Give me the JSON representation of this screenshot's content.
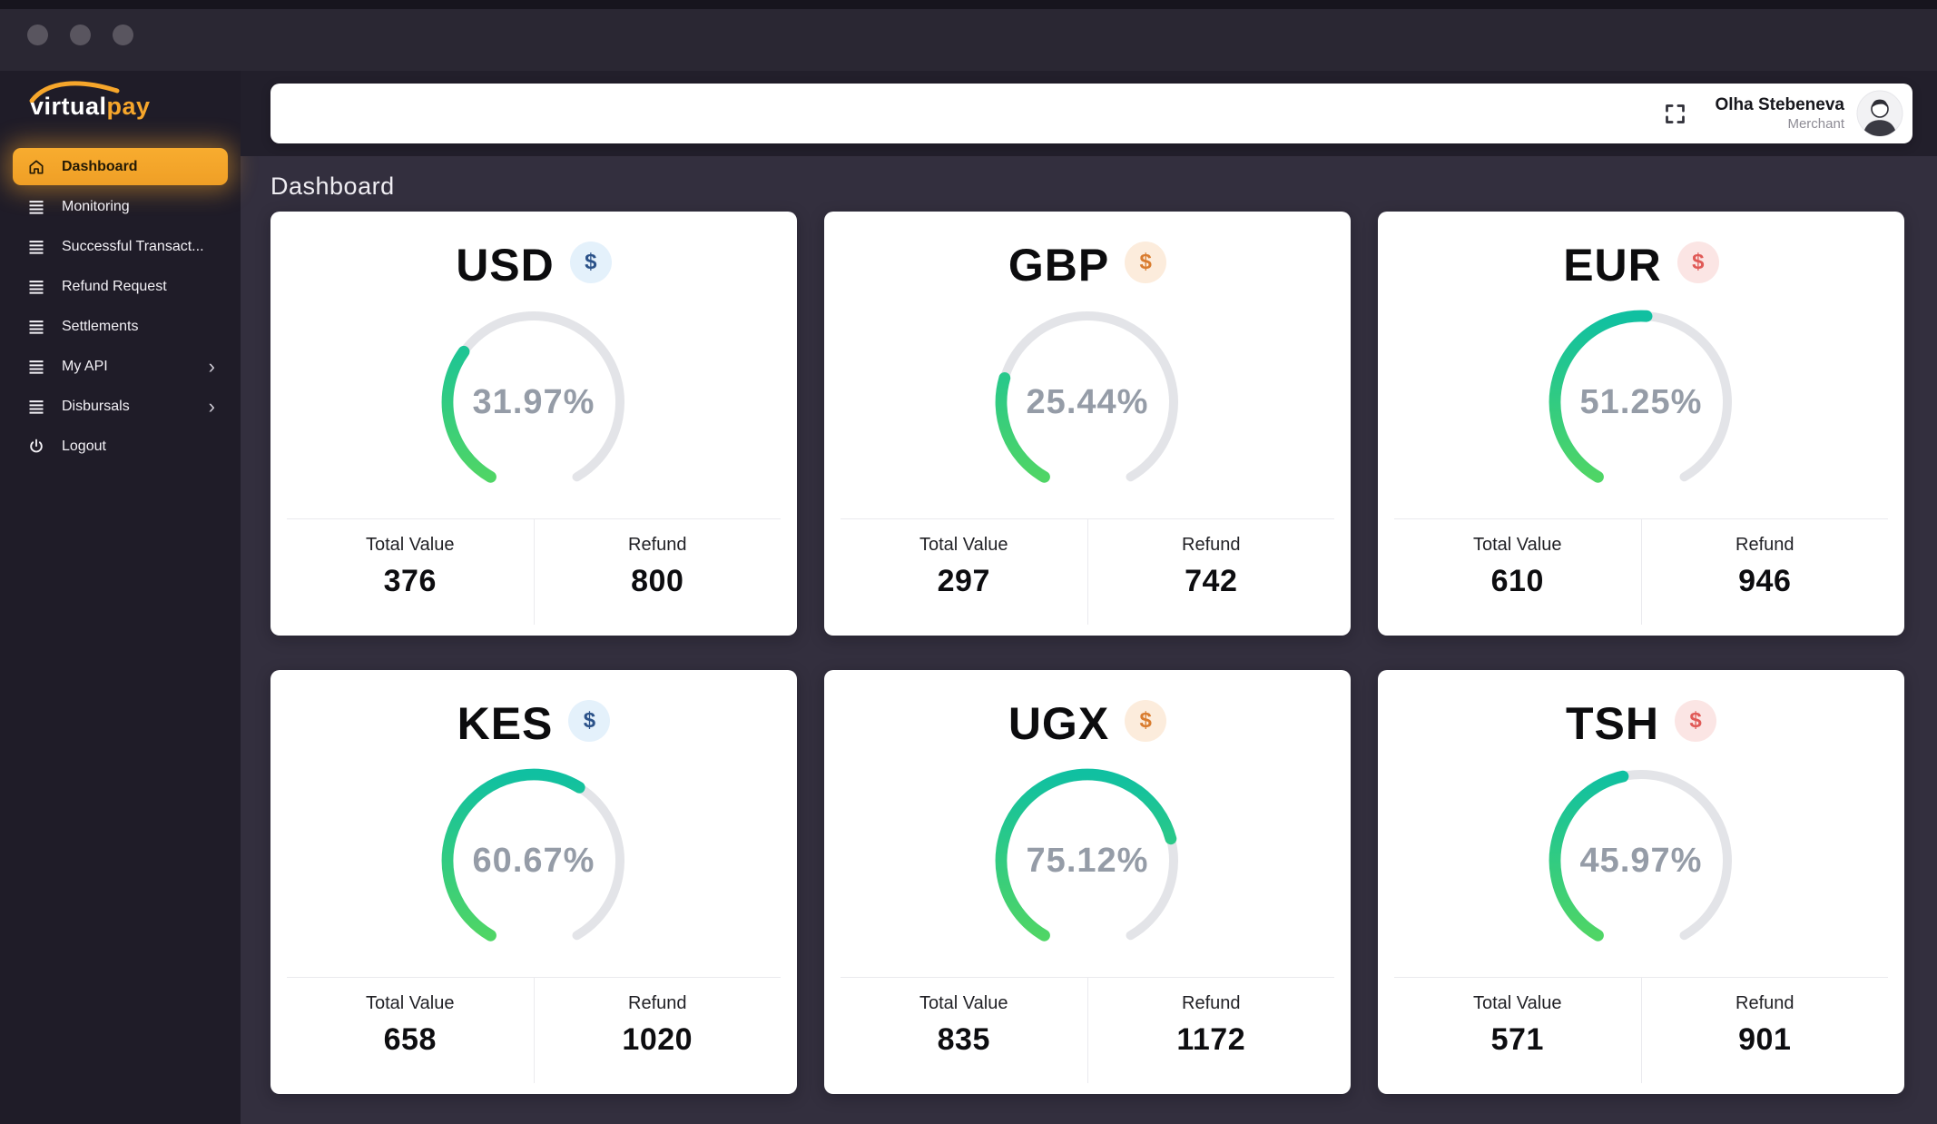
{
  "window": {
    "controls": [
      "window-dot",
      "window-dot",
      "window-dot"
    ]
  },
  "sidebar": {
    "logo": {
      "text_primary": "virtual",
      "text_accent": "pay"
    },
    "items": [
      {
        "label": "Dashboard",
        "icon": "home-icon",
        "active": true,
        "submenu": false
      },
      {
        "label": "Monitoring",
        "icon": "menu-icon",
        "active": false,
        "submenu": false
      },
      {
        "label": "Successful Transact...",
        "icon": "menu-icon",
        "active": false,
        "submenu": false
      },
      {
        "label": "Refund Request",
        "icon": "menu-icon",
        "active": false,
        "submenu": false
      },
      {
        "label": "Settlements",
        "icon": "menu-icon",
        "active": false,
        "submenu": false
      },
      {
        "label": "My API",
        "icon": "menu-icon",
        "active": false,
        "submenu": true
      },
      {
        "label": "Disbursals",
        "icon": "menu-icon",
        "active": false,
        "submenu": true
      },
      {
        "label": "Logout",
        "icon": "power-icon",
        "active": false,
        "submenu": false
      }
    ]
  },
  "topbar": {
    "user_name": "Olha Stebeneva",
    "user_role": "Merchant"
  },
  "page": {
    "heading": "Dashboard"
  },
  "card_labels": {
    "total": "Total Value",
    "refund": "Refund"
  },
  "cards": [
    {
      "code": "USD",
      "currency_symbol": "$",
      "badge": "blue",
      "percent": "31.97%",
      "percent_value": 31.97,
      "total_value": "376",
      "refund_value": "800"
    },
    {
      "code": "GBP",
      "currency_symbol": "$",
      "badge": "orange",
      "percent": "25.44%",
      "percent_value": 25.44,
      "total_value": "297",
      "refund_value": "742"
    },
    {
      "code": "EUR",
      "currency_symbol": "$",
      "badge": "pink",
      "percent": "51.25%",
      "percent_value": 51.25,
      "total_value": "610",
      "refund_value": "946"
    },
    {
      "code": "KES",
      "currency_symbol": "$",
      "badge": "blue",
      "percent": "60.67%",
      "percent_value": 60.67,
      "total_value": "658",
      "refund_value": "1020"
    },
    {
      "code": "UGX",
      "currency_symbol": "$",
      "badge": "orange",
      "percent": "75.12%",
      "percent_value": 75.12,
      "total_value": "835",
      "refund_value": "1172"
    },
    {
      "code": "TSH",
      "currency_symbol": "$",
      "badge": "pink",
      "percent": "45.97%",
      "percent_value": 45.97,
      "total_value": "571",
      "refund_value": "901"
    }
  ],
  "icons": {
    "chevron": "›",
    "fullscreen": "fullscreen-icon",
    "dollar": "$"
  },
  "chart_data": {
    "type": "gauge-set",
    "description": "Six 300-degree circular progress gauges, fill starts at bottom-left end and sweeps clockwise",
    "categories": [
      "USD",
      "GBP",
      "EUR",
      "KES",
      "UGX",
      "TSH"
    ],
    "series": [
      {
        "name": "Percent",
        "values": [
          31.97,
          25.44,
          51.25,
          60.67,
          75.12,
          45.97
        ]
      },
      {
        "name": "Total Value",
        "values": [
          376,
          297,
          610,
          658,
          835,
          571
        ]
      },
      {
        "name": "Refund",
        "values": [
          800,
          742,
          946,
          1020,
          1172,
          901
        ]
      }
    ]
  },
  "colors": {
    "accent_orange": "#f6a62b",
    "gauge_green_top": "#10c0a1",
    "gauge_green_bottom": "#4fd566",
    "gauge_track": "#e3e4e8",
    "sidebar_bg": "#1f1c28",
    "main_bg": "#332f3e",
    "titlebar_bg": "#2a2733",
    "headband_bg": "#221f2b"
  }
}
